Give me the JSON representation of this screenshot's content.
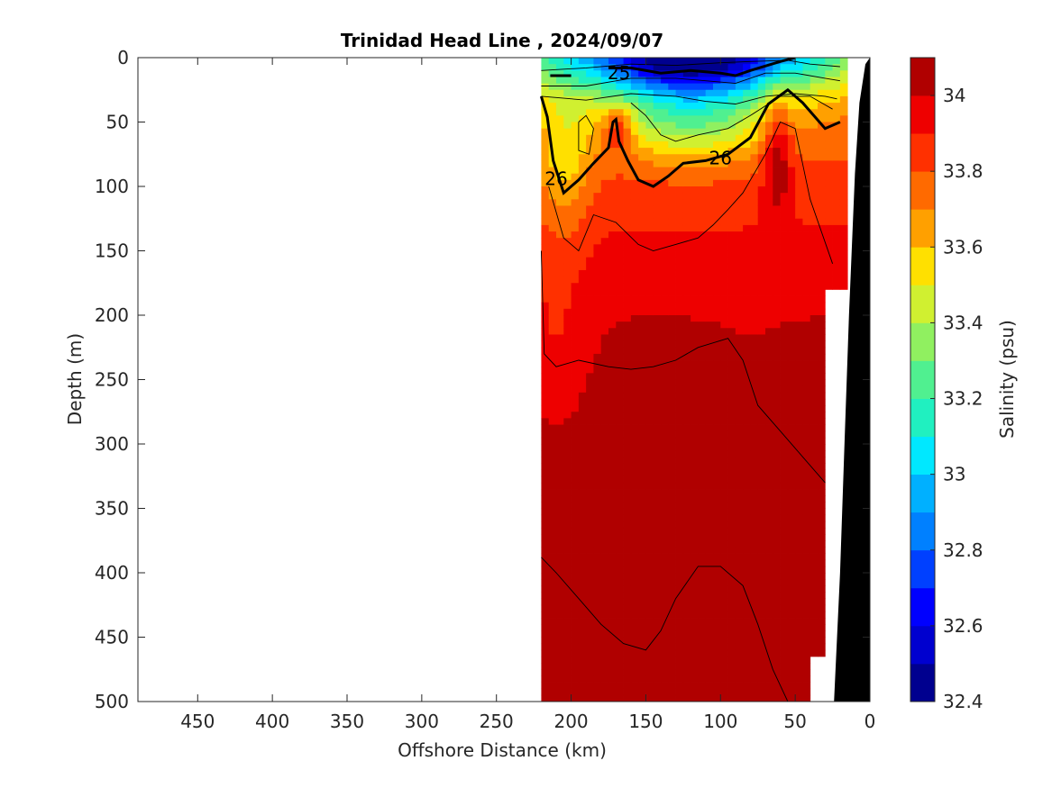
{
  "chart_data": {
    "type": "heatmap",
    "title": "Trinidad Head Line , 2024/09/07",
    "xlabel": "Offshore Distance (km)",
    "ylabel": "Depth (m)",
    "colorbar_label": "Salinity (psu)",
    "xlim": [
      490,
      0
    ],
    "ylim": [
      0,
      500
    ],
    "x_ticks": [
      450,
      400,
      350,
      300,
      250,
      200,
      150,
      100,
      50,
      0
    ],
    "y_ticks": [
      0,
      50,
      100,
      150,
      200,
      250,
      300,
      350,
      400,
      450,
      500
    ],
    "colorbar": {
      "range": [
        32.4,
        34.1
      ],
      "tick_values": [
        32.4,
        32.6,
        32.8,
        33.0,
        33.2,
        33.4,
        33.6,
        33.8,
        34.0
      ],
      "tick_labels": [
        "32.4",
        "32.6",
        "32.8",
        "33",
        "33.2",
        "33.4",
        "33.6",
        "33.8",
        "34"
      ],
      "levels": [
        {
          "min": 32.4,
          "color": "#00008f"
        },
        {
          "min": 32.5,
          "color": "#0000cf"
        },
        {
          "min": 32.6,
          "color": "#0000ff"
        },
        {
          "min": 32.7,
          "color": "#0040ff"
        },
        {
          "min": 32.8,
          "color": "#0080ff"
        },
        {
          "min": 32.9,
          "color": "#00b0ff"
        },
        {
          "min": 33.0,
          "color": "#00e8ff"
        },
        {
          "min": 33.1,
          "color": "#20f0c0"
        },
        {
          "min": 33.2,
          "color": "#50f090"
        },
        {
          "min": 33.3,
          "color": "#90f060"
        },
        {
          "min": 33.4,
          "color": "#d0f030"
        },
        {
          "min": 33.5,
          "color": "#ffe000"
        },
        {
          "min": 33.6,
          "color": "#ffa000"
        },
        {
          "min": 33.7,
          "color": "#ff6a00"
        },
        {
          "min": 33.8,
          "color": "#ff3000"
        },
        {
          "min": 33.9,
          "color": "#ee0000"
        },
        {
          "min": 34.0,
          "color": "#b00000"
        }
      ]
    },
    "contour_labels": [
      {
        "text": "25",
        "x": 168,
        "y": 12
      },
      {
        "text": "26",
        "x": 100,
        "y": 78
      },
      {
        "text": "26",
        "x": 210,
        "y": 94
      }
    ],
    "data_extent": {
      "x_max": 220,
      "x_min": 20
    },
    "seafloor_color": "#000000"
  }
}
